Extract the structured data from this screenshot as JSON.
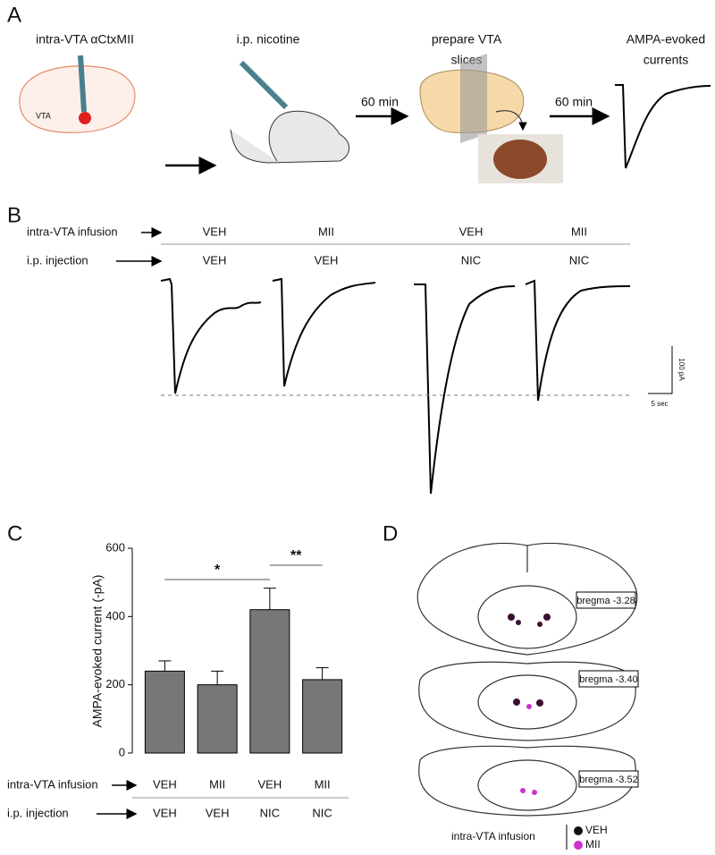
{
  "panel_a": {
    "label": "A",
    "steps": [
      [
        "intra-VTA αCtxMII"
      ],
      [
        "i.p. nicotine"
      ],
      [
        "prepare VTA",
        "slices"
      ],
      [
        "AMPA-evoked",
        "currents"
      ]
    ],
    "vta_label": "VTA",
    "delays": [
      "60 min",
      "60 min"
    ]
  },
  "panel_b": {
    "label": "B",
    "row_labels": [
      "intra-VTA infusion",
      "i.p. injection"
    ],
    "infusion": [
      "VEH",
      "MII",
      "VEH",
      "MII"
    ],
    "injection": [
      "VEH",
      "VEH",
      "NIC",
      "NIC"
    ],
    "scale_current": "100 pA",
    "scale_time": "5 sec"
  },
  "chart_data": {
    "type": "bar",
    "label": "C",
    "ylabel": "AMPA-evoked current (-pA)",
    "values": [
      240,
      200,
      420,
      215
    ],
    "errors": [
      30,
      40,
      63,
      35
    ],
    "color": "#777777",
    "ylim": [
      0,
      600
    ],
    "yticks": [
      0,
      200,
      400,
      600
    ],
    "rows": [
      {
        "name": "intra-VTA infusion",
        "labels": [
          "VEH",
          "MII",
          "VEH",
          "MII"
        ]
      },
      {
        "name": "i.p. injection",
        "labels": [
          "VEH",
          "VEH",
          "NIC",
          "NIC"
        ]
      }
    ],
    "significance": [
      {
        "label": "*",
        "from": 0,
        "to": 2
      },
      {
        "label": "**",
        "from": 2,
        "to": 3
      }
    ]
  },
  "panel_d": {
    "label": "D",
    "sections": [
      "bregma -3.28",
      "bregma -3.40",
      "bregma -3.52"
    ],
    "legend_title": "intra-VTA infusion",
    "legend": [
      {
        "name": "VEH",
        "color": "#111111"
      },
      {
        "name": "MII",
        "color": "#cc33cc"
      }
    ]
  }
}
